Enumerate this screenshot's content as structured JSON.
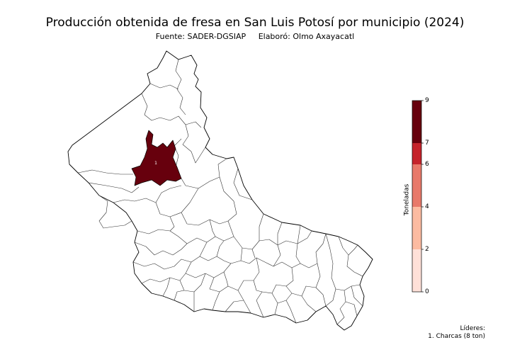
{
  "title": "Producción obtenida de fresa en San Luis Potosí por municipio (2024)",
  "source": "Fuente: SADER-DGSIAP",
  "author": "Elaboró: Olmo Axayacatl",
  "map": {
    "highlighted": [
      {
        "rank": "1",
        "municipality": "Charcas",
        "value": 8,
        "color": "#67000d"
      }
    ]
  },
  "colorbar": {
    "label": "Toneladas",
    "ticks": [
      "0",
      "2",
      "4",
      "6",
      "7",
      "9"
    ],
    "bins": [
      {
        "from": 0,
        "to": 2,
        "color": "#fee0d8"
      },
      {
        "from": 2,
        "to": 4,
        "color": "#fcbba1"
      },
      {
        "from": 4,
        "to": 6,
        "color": "#e8796a"
      },
      {
        "from": 6,
        "to": 7,
        "color": "#c5232b"
      },
      {
        "from": 7,
        "to": 9,
        "color": "#67000d"
      }
    ]
  },
  "leaders": {
    "heading": "Líderes:",
    "items": [
      "1. Charcas (8 ton)"
    ]
  }
}
